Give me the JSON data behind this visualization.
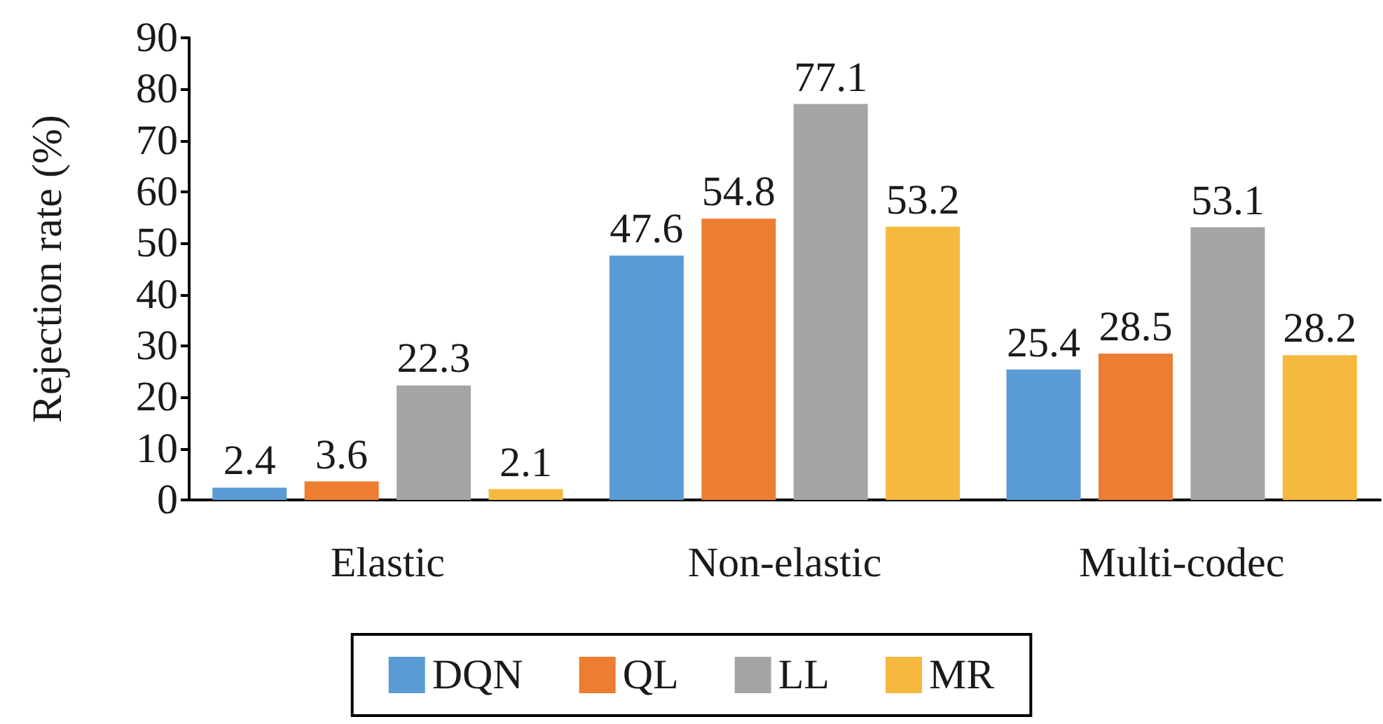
{
  "chart_data": {
    "type": "bar",
    "ylabel": "Rejection rate (%)",
    "categories": [
      "Elastic",
      "Non-elastic",
      "Multi-codec"
    ],
    "series": [
      {
        "name": "DQN",
        "color": "#5b9bd5",
        "values": [
          2.4,
          47.6,
          25.4
        ]
      },
      {
        "name": "QL",
        "color": "#ed7d31",
        "values": [
          3.6,
          54.8,
          28.5
        ]
      },
      {
        "name": "LL",
        "color": "#a5a5a5",
        "values": [
          22.3,
          77.1,
          53.1
        ]
      },
      {
        "name": "MR",
        "color": "#f5b93f",
        "values": [
          2.1,
          53.2,
          28.2
        ]
      }
    ],
    "ylim": [
      0,
      90
    ],
    "yticks": [
      0,
      10,
      20,
      30,
      40,
      50,
      60,
      70,
      80,
      90
    ],
    "grid": false,
    "legend": "bottom",
    "data_labels": true
  }
}
